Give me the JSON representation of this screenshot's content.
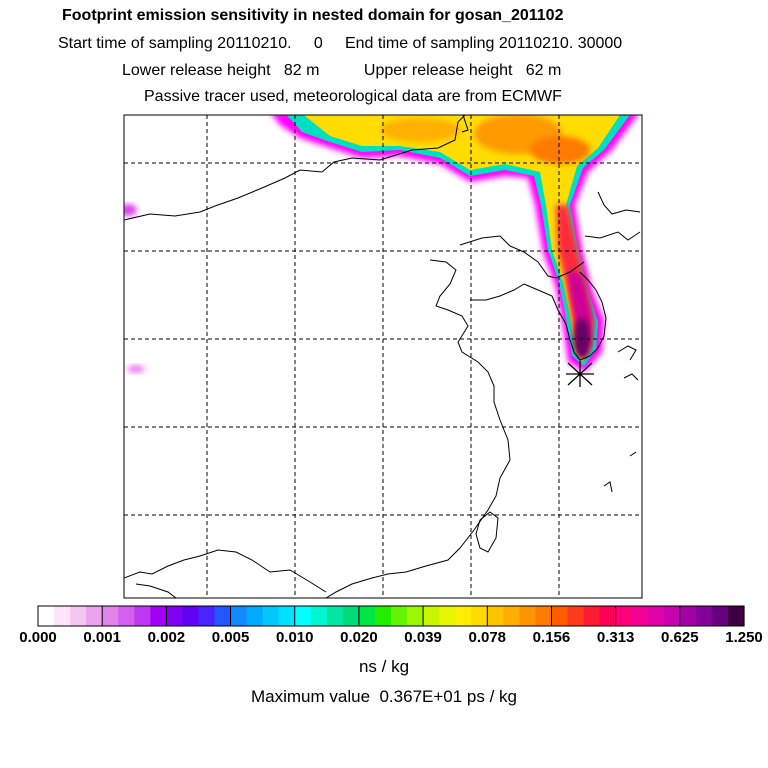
{
  "header": {
    "title": "Footprint emission sensitivity in nested domain for gosan_201102",
    "sampling_line": "Start time of sampling 20110210.     0     End time of sampling 20110210. 30000",
    "release_line": "Lower release height   82 m          Upper release height   62 m",
    "tracer_line": "Passive tracer used, meteorological data are from ECMWF"
  },
  "map": {
    "receptor_marker": "x-star-marker",
    "plume_colors": [
      "#ff00ff",
      "#ffcc00",
      "#ff8800",
      "#ff2244",
      "#cc0099",
      "#660066"
    ]
  },
  "colorbar": {
    "ticks": [
      "0.000",
      "0.001",
      "0.002",
      "0.005",
      "0.010",
      "0.020",
      "0.039",
      "0.078",
      "0.156",
      "0.313",
      "0.625",
      "1.250"
    ],
    "colors": [
      "#ffffff",
      "#fde4fb",
      "#f6c6f3",
      "#eda2ee",
      "#e283ea",
      "#d65ff0",
      "#c039f2",
      "#a200f5",
      "#7f00f5",
      "#6000f5",
      "#4a22ff",
      "#2255ff",
      "#1188ff",
      "#00aaff",
      "#00c8ff",
      "#00e0ff",
      "#00ffff",
      "#00f5d2",
      "#00e6a3",
      "#00dc7a",
      "#00e645",
      "#22f000",
      "#66f500",
      "#9cf700",
      "#c8f500",
      "#e8f500",
      "#ffee00",
      "#ffdb00",
      "#ffc400",
      "#ffad00",
      "#ff9400",
      "#ff7a00",
      "#ff5c00",
      "#ff3a1a",
      "#ff1a33",
      "#ff0055",
      "#ff0077",
      "#f20094",
      "#e000a8",
      "#c800b0",
      "#a400a8",
      "#86009a",
      "#66007f",
      "#3d0040"
    ],
    "units": "ns / kg"
  },
  "footer": {
    "max_value": "Maximum value  0.367E+01 ps / kg"
  }
}
